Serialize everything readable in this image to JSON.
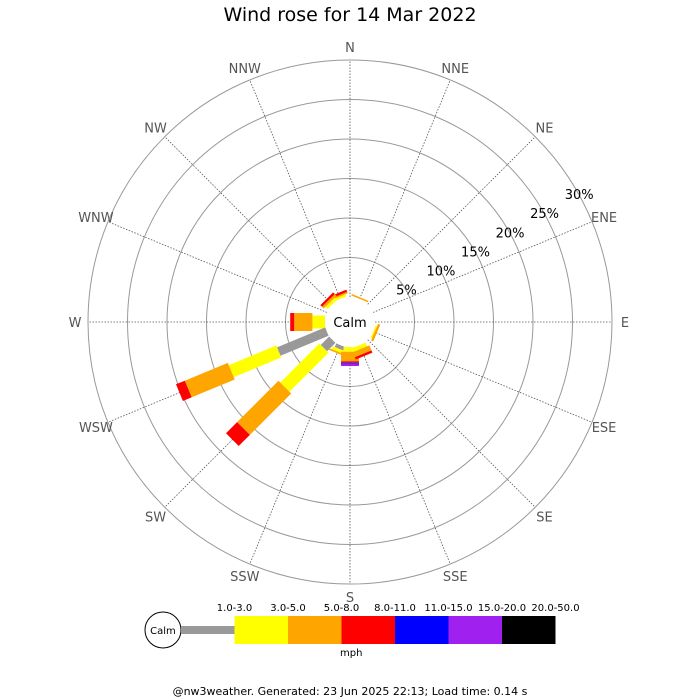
{
  "chart_data": {
    "type": "wind-rose",
    "title": "Wind rose for 14 Mar 2022",
    "calm_label": "Calm",
    "unit_label": "mph",
    "radial_labels": [
      "5%",
      "10%",
      "15%",
      "20%",
      "25%",
      "30%"
    ],
    "radial_max": 30,
    "directions": [
      "N",
      "NNE",
      "NE",
      "ENE",
      "E",
      "ESE",
      "SE",
      "SSE",
      "S",
      "SSW",
      "SW",
      "WSW",
      "W",
      "WNW",
      "NW",
      "NNW"
    ],
    "speed_bins": [
      {
        "label": "1.0-3.0",
        "color": "#999999"
      },
      {
        "label": "3.0-5.0",
        "color": "#ffff00"
      },
      {
        "label": "5.0-8.0",
        "color": "#ffa500"
      },
      {
        "label": "8.0-11.0",
        "color": "#ff0000"
      },
      {
        "label": "11.0-15.0",
        "color": "#0000ff"
      },
      {
        "label": "15.0-20.0",
        "color": "#a020f0"
      },
      {
        "label": "20.0-50.0",
        "color": "#000000"
      }
    ],
    "series": [
      {
        "direction": "NNW",
        "values": [
          0,
          0.3,
          0.2,
          0.3,
          0,
          0,
          0
        ]
      },
      {
        "direction": "NW",
        "values": [
          0,
          0.4,
          0.3,
          0.3,
          0,
          0,
          0
        ]
      },
      {
        "direction": "W",
        "values": [
          0,
          1.6,
          2.3,
          0.5,
          0,
          0,
          0
        ]
      },
      {
        "direction": "WSW",
        "values": [
          6.6,
          6.5,
          5.9,
          1.2,
          0,
          0,
          0
        ]
      },
      {
        "direction": "SW",
        "values": [
          1.5,
          7.0,
          7.4,
          2.0,
          0,
          0,
          0
        ]
      },
      {
        "direction": "SSW",
        "values": [
          0.5,
          0.4,
          0.2,
          0,
          0,
          0,
          0
        ]
      },
      {
        "direction": "S",
        "values": [
          0,
          0.6,
          1.2,
          0.2,
          0.1,
          0.3,
          0
        ]
      },
      {
        "direction": "SSE",
        "values": [
          0,
          0.5,
          0.7,
          0.3,
          0,
          0,
          0
        ]
      },
      {
        "direction": "ESE",
        "values": [
          0,
          0.2,
          0.3,
          0,
          0,
          0,
          0
        ]
      },
      {
        "direction": "NNE",
        "values": [
          0,
          0,
          0.2,
          0,
          0,
          0,
          0
        ]
      }
    ]
  },
  "footer": "@nw3weather. Generated: 23 Jun 2025 22:13; Load time: 0.14 s"
}
